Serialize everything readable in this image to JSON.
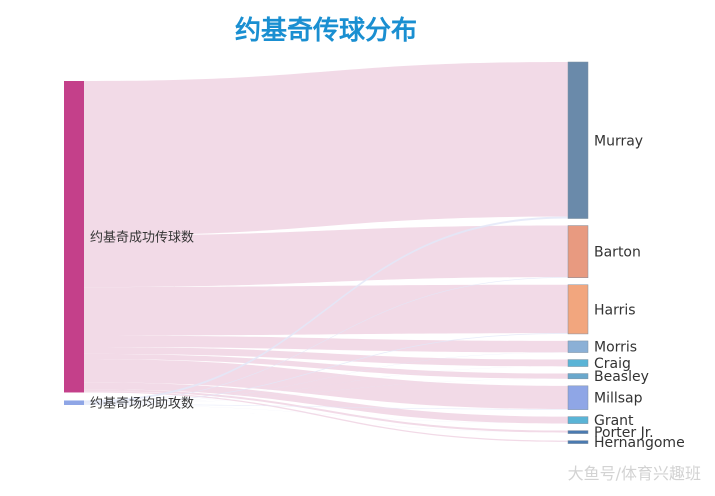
{
  "chart_data": {
    "type": "sankey",
    "title": "约基奇传球分布",
    "sources": [
      {
        "name": "约基奇成功传球数",
        "color": "#c4408a",
        "link_color": "#f1d8e6"
      },
      {
        "name": "约基奇场均助攻数",
        "color": "#8fa6e6",
        "link_color": "#e3e8f8"
      }
    ],
    "targets": [
      {
        "name": "Murray",
        "color": "#6a8aaa",
        "passes": 163.7,
        "assists": 2.1
      },
      {
        "name": "Barton",
        "color": "#e89a80",
        "passes": 54.6,
        "assists": 0.7
      },
      {
        "name": "Harris",
        "color": "#f2a67e",
        "passes": 51.3,
        "assists": 0.8
      },
      {
        "name": "Morris",
        "color": "#8bb0d6",
        "passes": 12.1,
        "assists": 0.2
      },
      {
        "name": "Craig",
        "color": "#5ab4d6",
        "passes": 7.3,
        "assists": 0.1
      },
      {
        "name": "Beasley",
        "color": "#6aa8cc",
        "passes": 5.5,
        "assists": 0.1
      },
      {
        "name": "Millsap",
        "color": "#8fa6e6",
        "passes": 24.6,
        "assists": 0.6
      },
      {
        "name": "Grant",
        "color": "#5ab4d6",
        "passes": 7.3,
        "assists": 0.1
      },
      {
        "name": "Porter Jr.",
        "color": "#4a7ab0",
        "passes": 2.1,
        "assists": 0.05
      },
      {
        "name": "Hernangome",
        "color": "#4a7ab0",
        "passes": 1.4,
        "assists": 0.05
      }
    ]
  },
  "watermark": "大鱼号/体育兴趣班"
}
